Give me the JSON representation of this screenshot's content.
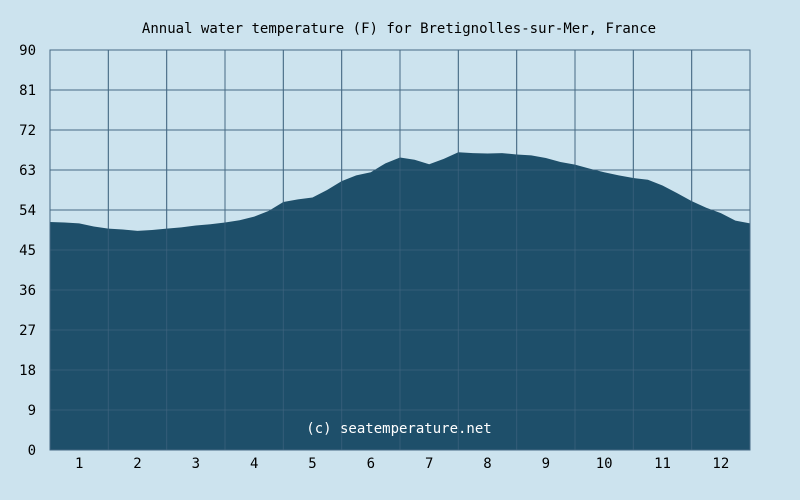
{
  "chart_data": {
    "type": "area",
    "title": "Annual water temperature (F) for Bretignolles-sur-Mer, France",
    "watermark": "(c) seatemperature.net",
    "xlabel": "",
    "ylabel": "",
    "xlim": [
      0.5,
      12.5
    ],
    "ylim": [
      0,
      90
    ],
    "x_ticks": [
      1,
      2,
      3,
      4,
      5,
      6,
      7,
      8,
      9,
      10,
      11,
      12
    ],
    "x_tick_labels": [
      "1",
      "2",
      "3",
      "4",
      "5",
      "6",
      "7",
      "8",
      "9",
      "10",
      "11",
      "12"
    ],
    "y_ticks": [
      0,
      9,
      18,
      27,
      36,
      45,
      54,
      63,
      72,
      81,
      90
    ],
    "y_tick_labels": [
      "0",
      "9",
      "18",
      "27",
      "36",
      "45",
      "54",
      "63",
      "72",
      "81",
      "90"
    ],
    "grid": true,
    "series": [
      {
        "x": [
          0.5,
          0.75,
          1.0,
          1.25,
          1.5,
          1.75,
          2.0,
          2.25,
          2.5,
          2.75,
          3.0,
          3.25,
          3.5,
          3.75,
          4.0,
          4.25,
          4.5,
          4.75,
          5.0,
          5.25,
          5.5,
          5.75,
          6.0,
          6.25,
          6.5,
          6.75,
          7.0,
          7.25,
          7.5,
          7.75,
          8.0,
          8.25,
          8.5,
          8.75,
          9.0,
          9.25,
          9.5,
          9.75,
          10.0,
          10.25,
          10.5,
          10.75,
          11.0,
          11.25,
          11.5,
          11.75,
          12.0,
          12.25,
          12.5
        ],
        "values": [
          51.3,
          51.2,
          51.0,
          50.3,
          49.8,
          49.6,
          49.3,
          49.5,
          49.8,
          50.1,
          50.5,
          50.8,
          51.2,
          51.7,
          52.5,
          53.8,
          55.8,
          56.4,
          56.8,
          58.5,
          60.5,
          61.8,
          62.5,
          64.5,
          65.8,
          65.3,
          64.3,
          65.5,
          67.0,
          66.8,
          66.7,
          66.8,
          66.5,
          66.3,
          65.7,
          64.8,
          64.2,
          63.3,
          62.5,
          61.8,
          61.2,
          60.8,
          59.5,
          57.8,
          56.0,
          54.5,
          53.3,
          51.6,
          51.0
        ]
      }
    ],
    "colors": {
      "background": "#cce3ee",
      "plot_background": "#cce3ee",
      "fill": "#1e4f6a",
      "grid": "#466a84"
    }
  }
}
